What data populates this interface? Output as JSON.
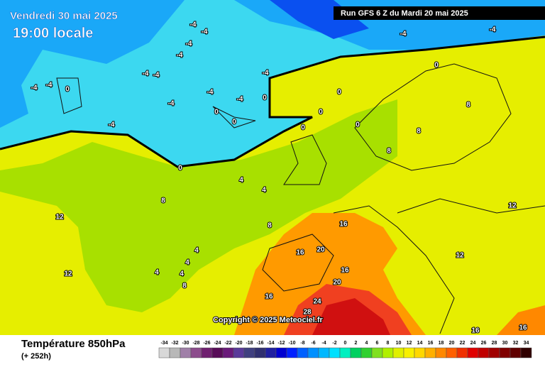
{
  "header": {
    "date": "Vendredi 30 mai 2025",
    "time": "19:00 locale",
    "run": "Run GFS 6 Z du Mardi 20 mai 2025"
  },
  "copyright": "Copyright © 2025 Meteociel.fr",
  "footer": {
    "title": "Température 850hPa",
    "lead": "(+ 252h)"
  },
  "scale": {
    "values": [
      -34,
      -32,
      -30,
      -28,
      -26,
      -24,
      -22,
      -20,
      -18,
      -16,
      -14,
      -12,
      -10,
      -8,
      -6,
      -4,
      -2,
      0,
      2,
      4,
      6,
      8,
      10,
      12,
      14,
      16,
      18,
      20,
      22,
      24,
      26,
      28,
      30,
      32,
      34
    ],
    "colors": [
      "#d8d8d8",
      "#b8b8b8",
      "#a080a8",
      "#8c4c8c",
      "#702070",
      "#580c58",
      "#6a1a7a",
      "#5a3a9a",
      "#404080",
      "#303070",
      "#2020a0",
      "#0000d0",
      "#0020ff",
      "#0060ff",
      "#0090ff",
      "#00b8ff",
      "#00e0ff",
      "#00f0c0",
      "#00d060",
      "#30d030",
      "#80e020",
      "#b0f000",
      "#e0f000",
      "#f8f000",
      "#ffd800",
      "#ffb000",
      "#ff8800",
      "#ff6000",
      "#f03000",
      "#e00000",
      "#c00000",
      "#a00000",
      "#800000",
      "#600000",
      "#300000"
    ]
  },
  "contour_labels": [
    -4,
    -4,
    -4,
    -4,
    -4,
    -4,
    -4,
    -4,
    -4,
    -4,
    -4,
    -4,
    -4,
    -4,
    -4,
    0,
    0,
    0,
    0,
    0,
    0,
    0,
    0,
    0,
    0,
    4,
    4,
    4,
    4,
    4,
    4,
    8,
    8,
    8,
    8,
    8,
    8,
    12,
    12,
    12,
    12,
    16,
    16,
    16,
    16,
    20,
    20,
    24,
    28,
    16,
    16
  ]
}
